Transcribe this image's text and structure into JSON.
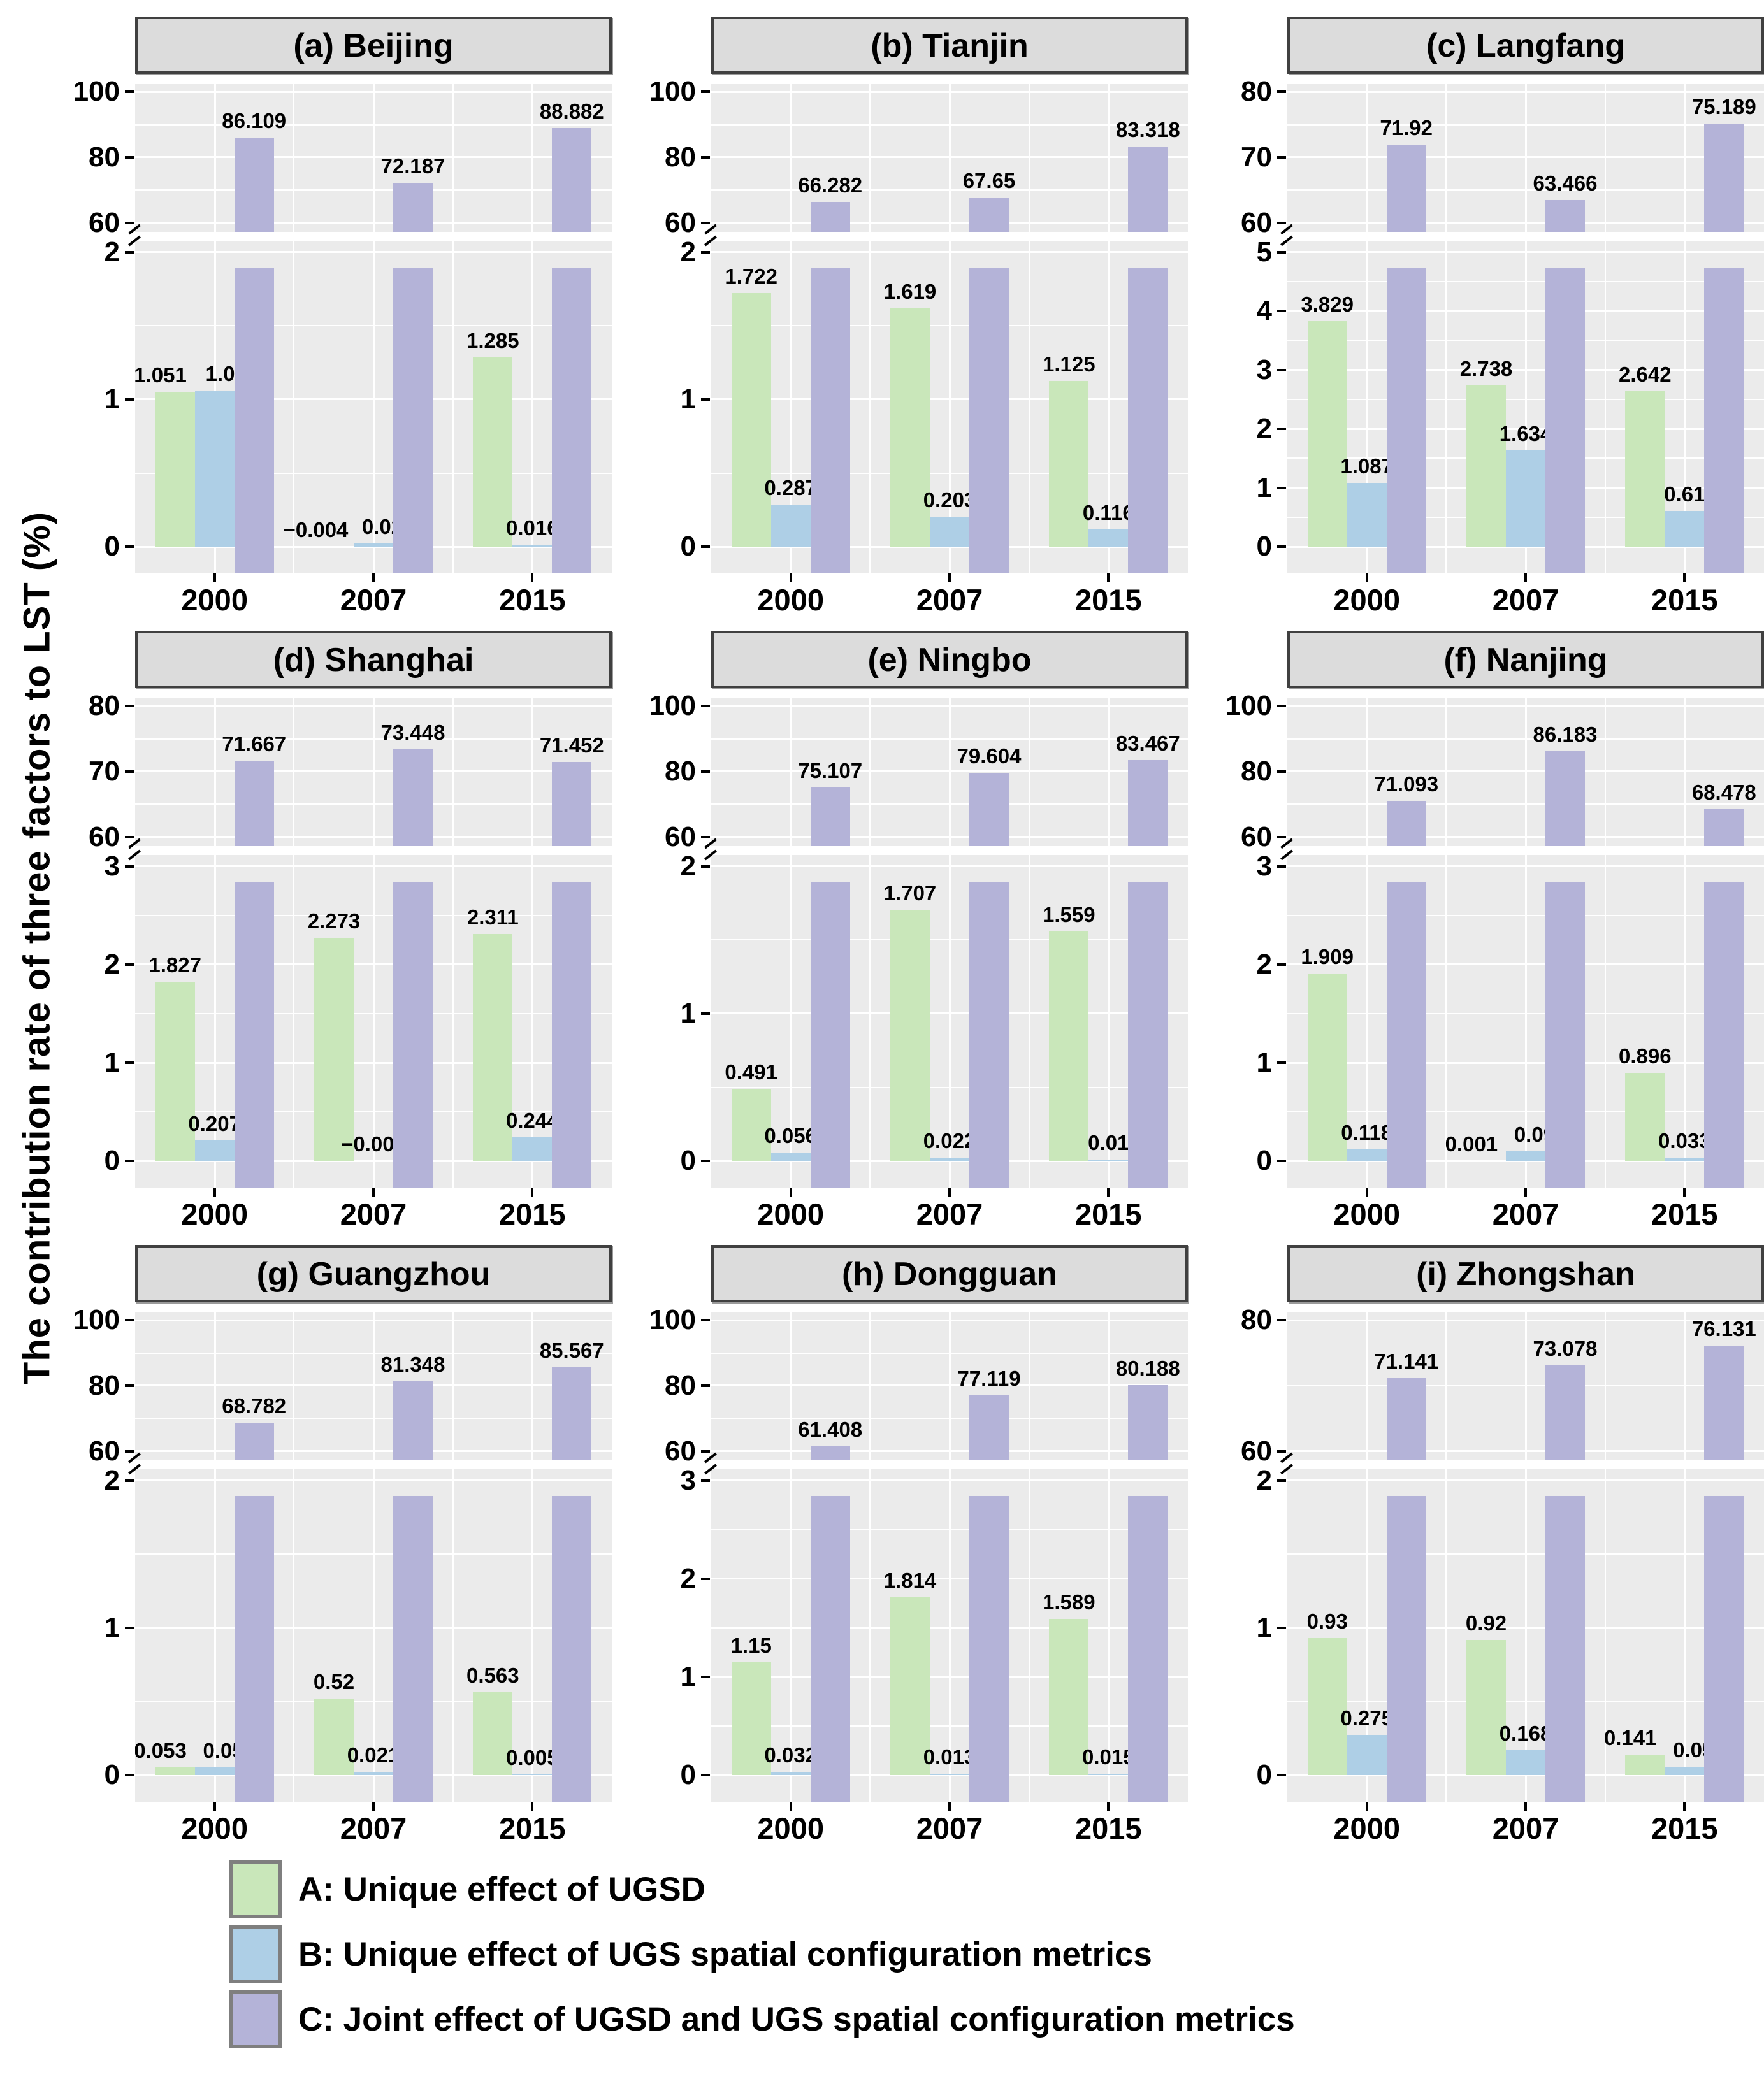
{
  "figure": {
    "ylabel": "The contribution rate of three factors to LST (%)"
  },
  "legend": [
    {
      "key": "A",
      "label": "A: Unique effect of UGSD",
      "color": "#c9e7ba"
    },
    {
      "key": "B",
      "label": "B: Unique effect of UGS spatial configuration metrics",
      "color": "#aecfe6"
    },
    {
      "key": "C",
      "label": "C: Joint effect of UGSD and UGS spatial configuration metrics",
      "color": "#b4b3d8"
    }
  ],
  "chart_data": {
    "type": "bar",
    "x_categories": [
      "2000",
      "2007",
      "2015"
    ],
    "broken_y_axis": true,
    "grid": true,
    "panels": [
      {
        "id": "a",
        "title": "(a) Beijing",
        "upper_axis": {
          "min": 60,
          "max": 100,
          "ticks": [
            100,
            80,
            60
          ]
        },
        "lower_axis": {
          "max": 2,
          "ticks": [
            2,
            1,
            0
          ]
        },
        "series": [
          {
            "name": "A",
            "values": [
              1.051,
              -0.004,
              1.285
            ],
            "labels": [
              "1.051",
              "−0.004",
              "1.285"
            ]
          },
          {
            "name": "B",
            "values": [
              1.06,
              0.021,
              0.016
            ],
            "labels": [
              "1.06",
              "0.021",
              "0.016"
            ]
          },
          {
            "name": "C",
            "values": [
              86.109,
              72.187,
              88.882
            ],
            "labels": [
              "86.109",
              "72.187",
              "88.882"
            ]
          }
        ]
      },
      {
        "id": "b",
        "title": "(b) Tianjin",
        "upper_axis": {
          "min": 60,
          "max": 100,
          "ticks": [
            100,
            80,
            60
          ]
        },
        "lower_axis": {
          "max": 2,
          "ticks": [
            2,
            1,
            0
          ]
        },
        "series": [
          {
            "name": "A",
            "values": [
              1.722,
              1.619,
              1.125
            ],
            "labels": [
              "1.722",
              "1.619",
              "1.125"
            ]
          },
          {
            "name": "B",
            "values": [
              0.287,
              0.203,
              0.116
            ],
            "labels": [
              "0.287",
              "0.203",
              "0.116"
            ]
          },
          {
            "name": "C",
            "values": [
              66.282,
              67.65,
              83.318
            ],
            "labels": [
              "66.282",
              "67.65",
              "83.318"
            ]
          }
        ]
      },
      {
        "id": "c",
        "title": "(c) Langfang",
        "upper_axis": {
          "min": 60,
          "max": 80,
          "ticks": [
            80,
            70,
            60
          ]
        },
        "lower_axis": {
          "max": 5,
          "ticks": [
            5,
            4,
            3,
            2,
            1,
            0
          ]
        },
        "series": [
          {
            "name": "A",
            "values": [
              3.829,
              2.738,
              2.642
            ],
            "labels": [
              "3.829",
              "2.738",
              "2.642"
            ]
          },
          {
            "name": "B",
            "values": [
              1.087,
              1.634,
              0.61
            ],
            "labels": [
              "1.087",
              "1.634",
              "0.61"
            ]
          },
          {
            "name": "C",
            "values": [
              71.92,
              63.466,
              75.189
            ],
            "labels": [
              "71.92",
              "63.466",
              "75.189"
            ]
          }
        ]
      },
      {
        "id": "d",
        "title": "(d) Shanghai",
        "upper_axis": {
          "min": 60,
          "max": 80,
          "ticks": [
            80,
            70,
            60
          ]
        },
        "lower_axis": {
          "max": 3,
          "ticks": [
            3,
            2,
            1,
            0
          ]
        },
        "series": [
          {
            "name": "A",
            "values": [
              1.827,
              2.273,
              2.311
            ],
            "labels": [
              "1.827",
              "2.273",
              "2.311"
            ]
          },
          {
            "name": "B",
            "values": [
              0.207,
              -0.009,
              0.244
            ],
            "labels": [
              "0.207",
              "−0.009",
              "0.244"
            ]
          },
          {
            "name": "C",
            "values": [
              71.667,
              73.448,
              71.452
            ],
            "labels": [
              "71.667",
              "73.448",
              "71.452"
            ]
          }
        ]
      },
      {
        "id": "e",
        "title": "(e) Ningbo",
        "upper_axis": {
          "min": 60,
          "max": 100,
          "ticks": [
            100,
            80,
            60
          ]
        },
        "lower_axis": {
          "max": 2,
          "ticks": [
            2,
            1,
            0
          ]
        },
        "series": [
          {
            "name": "A",
            "values": [
              0.491,
              1.707,
              1.559
            ],
            "labels": [
              "0.491",
              "1.707",
              "1.559"
            ]
          },
          {
            "name": "B",
            "values": [
              0.056,
              0.022,
              0.01
            ],
            "labels": [
              "0.056",
              "0.022",
              "0.01"
            ]
          },
          {
            "name": "C",
            "values": [
              75.107,
              79.604,
              83.467
            ],
            "labels": [
              "75.107",
              "79.604",
              "83.467"
            ]
          }
        ]
      },
      {
        "id": "f",
        "title": "(f) Nanjing",
        "upper_axis": {
          "min": 60,
          "max": 100,
          "ticks": [
            100,
            80,
            60
          ]
        },
        "lower_axis": {
          "max": 3,
          "ticks": [
            3,
            2,
            1,
            0
          ]
        },
        "series": [
          {
            "name": "A",
            "values": [
              1.909,
              0.001,
              0.896
            ],
            "labels": [
              "1.909",
              "0.001",
              "0.896"
            ]
          },
          {
            "name": "B",
            "values": [
              0.118,
              0.099,
              0.033
            ],
            "labels": [
              "0.118",
              "0.099",
              "0.033"
            ]
          },
          {
            "name": "C",
            "values": [
              71.093,
              86.183,
              68.478
            ],
            "labels": [
              "71.093",
              "86.183",
              "68.478"
            ]
          }
        ]
      },
      {
        "id": "g",
        "title": "(g) Guangzhou",
        "upper_axis": {
          "min": 60,
          "max": 100,
          "ticks": [
            100,
            80,
            60
          ]
        },
        "lower_axis": {
          "max": 2,
          "ticks": [
            2,
            1,
            0
          ]
        },
        "series": [
          {
            "name": "A",
            "values": [
              0.053,
              0.52,
              0.563
            ],
            "labels": [
              "0.053",
              "0.52",
              "0.563"
            ]
          },
          {
            "name": "B",
            "values": [
              0.053,
              0.021,
              0.005
            ],
            "labels": [
              "0.053",
              "0.021",
              "0.005"
            ]
          },
          {
            "name": "C",
            "values": [
              68.782,
              81.348,
              85.567
            ],
            "labels": [
              "68.782",
              "81.348",
              "85.567"
            ]
          }
        ]
      },
      {
        "id": "h",
        "title": "(h) Dongguan",
        "upper_axis": {
          "min": 60,
          "max": 100,
          "ticks": [
            100,
            80,
            60
          ]
        },
        "lower_axis": {
          "max": 3,
          "ticks": [
            3,
            2,
            1,
            0
          ]
        },
        "series": [
          {
            "name": "A",
            "values": [
              1.15,
              1.814,
              1.589
            ],
            "labels": [
              "1.15",
              "1.814",
              "1.589"
            ]
          },
          {
            "name": "B",
            "values": [
              0.032,
              0.013,
              0.015
            ],
            "labels": [
              "0.032",
              "0.013",
              "0.015"
            ]
          },
          {
            "name": "C",
            "values": [
              61.408,
              77.119,
              80.188
            ],
            "labels": [
              "61.408",
              "77.119",
              "80.188"
            ]
          }
        ]
      },
      {
        "id": "i",
        "title": "(i) Zhongshan",
        "upper_axis": {
          "min": 60,
          "max": 80,
          "ticks": [
            80,
            60
          ]
        },
        "lower_axis": {
          "max": 2,
          "ticks": [
            2,
            1,
            0
          ]
        },
        "series": [
          {
            "name": "A",
            "values": [
              0.93,
              0.92,
              0.141
            ],
            "labels": [
              "0.93",
              "0.92",
              "0.141"
            ]
          },
          {
            "name": "B",
            "values": [
              0.275,
              0.168,
              0.057
            ],
            "labels": [
              "0.275",
              "0.168",
              "0.057"
            ]
          },
          {
            "name": "C",
            "values": [
              71.141,
              73.078,
              76.131
            ],
            "labels": [
              "71.141",
              "73.078",
              "76.131"
            ]
          }
        ]
      }
    ]
  }
}
